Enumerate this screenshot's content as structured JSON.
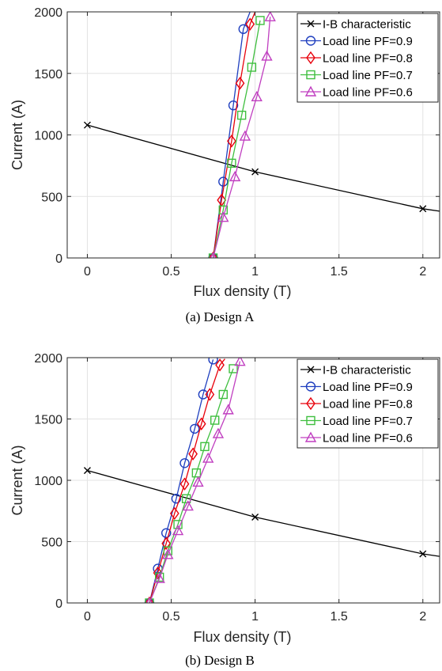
{
  "chart_data": [
    {
      "type": "line",
      "caption": "(a) Design A",
      "xlabel": "Flux density (T)",
      "ylabel": "Current (A)",
      "xlim": [
        -0.12,
        2.1
      ],
      "ylim": [
        0,
        2000
      ],
      "xticks": [
        0,
        0.5,
        1,
        1.5,
        2
      ],
      "xtick_labels": [
        "0",
        "0.5",
        "1",
        "1.5",
        "2"
      ],
      "yticks": [
        0,
        500,
        1000,
        1500,
        2000
      ],
      "ytick_labels": [
        "0",
        "500",
        "1000",
        "1500",
        "2000"
      ],
      "grid": true,
      "legend_position": "top-right",
      "series": [
        {
          "name": "I-B characteristic",
          "color": "#000000",
          "marker": "x",
          "x": [
            0,
            1,
            2,
            2.1
          ],
          "y": [
            1080,
            700,
            400,
            380
          ],
          "marker_count": 3
        },
        {
          "name": "Load line PF=0.9",
          "color": "#1f3fbf",
          "marker": "circle",
          "x": [
            0.75,
            0.81,
            0.87,
            0.93,
            0.97
          ],
          "y": [
            0,
            620,
            1240,
            1860,
            2000
          ],
          "marker_count": 4
        },
        {
          "name": "Load line PF=0.8",
          "color": "#e8000b",
          "marker": "diamond",
          "x": [
            0.75,
            0.8,
            0.86,
            0.91,
            0.97,
            1.0
          ],
          "y": [
            0,
            470,
            950,
            1420,
            1900,
            2000
          ],
          "marker_count": 5
        },
        {
          "name": "Load line PF=0.7",
          "color": "#3fbf3f",
          "marker": "square",
          "x": [
            0.75,
            0.81,
            0.86,
            0.92,
            0.98,
            1.03
          ],
          "y": [
            0,
            390,
            770,
            1160,
            1550,
            1930
          ],
          "marker_count": 6
        },
        {
          "name": "Load line PF=0.6",
          "color": "#c03fc0",
          "marker": "triangle",
          "x": [
            0.75,
            0.81,
            0.88,
            0.94,
            1.01,
            1.07,
            1.09
          ],
          "y": [
            0,
            330,
            660,
            990,
            1310,
            1640,
            1960
          ],
          "marker_count": 7
        }
      ]
    },
    {
      "type": "line",
      "caption": "(b) Design B",
      "xlabel": "Flux density (T)",
      "ylabel": "Current (A)",
      "xlim": [
        -0.12,
        2.1
      ],
      "ylim": [
        0,
        2000
      ],
      "xticks": [
        0,
        0.5,
        1,
        1.5,
        2
      ],
      "xtick_labels": [
        "0",
        "0.5",
        "1",
        "1.5",
        "2"
      ],
      "yticks": [
        0,
        500,
        1000,
        1500,
        2000
      ],
      "ytick_labels": [
        "0",
        "500",
        "1000",
        "1500",
        "2000"
      ],
      "grid": true,
      "legend_position": "top-right",
      "series": [
        {
          "name": "I-B characteristic",
          "color": "#000000",
          "marker": "x",
          "x": [
            0,
            1,
            2,
            2.1
          ],
          "y": [
            1080,
            700,
            400,
            380
          ],
          "marker_count": 3
        },
        {
          "name": "Load line PF=0.9",
          "color": "#1f3fbf",
          "marker": "circle",
          "x": [
            0.37,
            0.42,
            0.47,
            0.53,
            0.58,
            0.64,
            0.69,
            0.75
          ],
          "y": [
            0,
            280,
            570,
            850,
            1140,
            1420,
            1700,
            1985
          ],
          "marker_count": 8
        },
        {
          "name": "Load line PF=0.8",
          "color": "#e8000b",
          "marker": "diamond",
          "x": [
            0.37,
            0.42,
            0.47,
            0.52,
            0.58,
            0.63,
            0.68,
            0.73,
            0.79,
            0.82
          ],
          "y": [
            0,
            245,
            485,
            730,
            970,
            1215,
            1460,
            1700,
            1940,
            1990
          ],
          "marker_count": 9
        },
        {
          "name": "Load line PF=0.7",
          "color": "#3fbf3f",
          "marker": "square",
          "x": [
            0.37,
            0.43,
            0.48,
            0.54,
            0.59,
            0.65,
            0.7,
            0.76,
            0.81,
            0.87
          ],
          "y": [
            0,
            210,
            425,
            640,
            850,
            1060,
            1275,
            1490,
            1700,
            1910
          ],
          "marker_count": 10
        },
        {
          "name": "Load line PF=0.6",
          "color": "#c03fc0",
          "marker": "triangle",
          "x": [
            0.37,
            0.43,
            0.48,
            0.54,
            0.6,
            0.66,
            0.72,
            0.78,
            0.84,
            0.91
          ],
          "y": [
            0,
            200,
            395,
            590,
            790,
            985,
            1180,
            1380,
            1575,
            1970
          ],
          "marker_count": 10
        }
      ]
    }
  ]
}
